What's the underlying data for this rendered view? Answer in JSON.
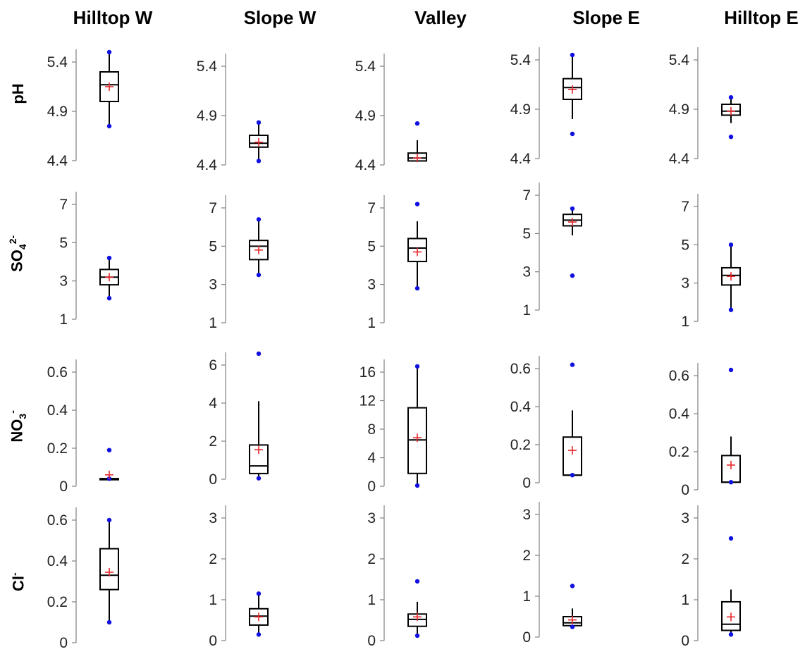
{
  "chart_data": {
    "type": "box",
    "title": "",
    "columns": [
      "Hilltop W",
      "Slope W",
      "Valley",
      "Slope E",
      "Hilltop E"
    ],
    "rows": [
      {
        "name": "pH",
        "label_main": "pH",
        "label_sub": "",
        "label_sup": ""
      },
      {
        "name": "SO4 2-",
        "label_main": "SO",
        "label_sub": "4",
        "label_sup": "2-"
      },
      {
        "name": "NO3 -",
        "label_main": "NO",
        "label_sub": "3",
        "label_sup": "-"
      },
      {
        "name": "Cl-",
        "label_main": "Cl",
        "label_sub": "",
        "label_sup": "-"
      }
    ],
    "legend_marks": {
      "mean_marker": "+",
      "outlier_marker": "dot"
    },
    "colors": {
      "box": "#000000",
      "mean": "#e8262a",
      "outlier": "#1010e0",
      "axis": "#808080"
    },
    "panels": [
      [
        {
          "ylim": [
            4.4,
            5.4
          ],
          "ticks": [
            4.4,
            4.9,
            5.4
          ],
          "tick_labels": [
            "4.4",
            "4.9",
            "5.4"
          ],
          "q1": 5.0,
          "median": 5.17,
          "q3": 5.3,
          "whisker_low": 4.75,
          "whisker_high": 5.5,
          "mean": 5.15,
          "outliers": [
            4.75,
            5.5
          ]
        },
        {
          "ylim": [
            4.4,
            5.4
          ],
          "ticks": [
            4.4,
            4.9,
            5.4
          ],
          "tick_labels": [
            "4.4",
            "4.9",
            "5.4"
          ],
          "q1": 4.58,
          "median": 4.62,
          "q3": 4.7,
          "whisker_low": 4.44,
          "whisker_high": 4.83,
          "mean": 4.63,
          "outliers": [
            4.44,
            4.83
          ]
        },
        {
          "ylim": [
            4.4,
            5.4
          ],
          "ticks": [
            4.4,
            4.9,
            5.4
          ],
          "tick_labels": [
            "4.4",
            "4.9",
            "5.4"
          ],
          "q1": 4.44,
          "median": 4.47,
          "q3": 4.52,
          "whisker_low": 4.44,
          "whisker_high": 4.65,
          "mean": 4.47,
          "outliers": [
            4.82
          ]
        },
        {
          "ylim": [
            4.4,
            5.4
          ],
          "ticks": [
            4.4,
            4.9,
            5.4
          ],
          "tick_labels": [
            "4.4",
            "4.9",
            "5.4"
          ],
          "q1": 5.0,
          "median": 5.12,
          "q3": 5.21,
          "whisker_low": 4.8,
          "whisker_high": 5.45,
          "mean": 5.1,
          "outliers": [
            4.65,
            5.45
          ]
        },
        {
          "ylim": [
            4.4,
            5.4
          ],
          "ticks": [
            4.4,
            4.9,
            5.4
          ],
          "tick_labels": [
            "4.4",
            "4.9",
            "5.4"
          ],
          "q1": 4.84,
          "median": 4.88,
          "q3": 4.95,
          "whisker_low": 4.76,
          "whisker_high": 5.02,
          "mean": 4.88,
          "outliers": [
            4.62,
            5.02
          ]
        }
      ],
      [
        {
          "ylim": [
            1,
            7
          ],
          "ticks": [
            1,
            3,
            5,
            7
          ],
          "tick_labels": [
            "1",
            "3",
            "5",
            "7"
          ],
          "q1": 2.8,
          "median": 3.2,
          "q3": 3.6,
          "whisker_low": 2.1,
          "whisker_high": 4.2,
          "mean": 3.2,
          "outliers": [
            2.1,
            4.2
          ]
        },
        {
          "ylim": [
            1,
            7
          ],
          "ticks": [
            1,
            3,
            5,
            7
          ],
          "tick_labels": [
            "1",
            "3",
            "5",
            "7"
          ],
          "q1": 4.3,
          "median": 5.0,
          "q3": 5.3,
          "whisker_low": 3.5,
          "whisker_high": 6.4,
          "mean": 4.8,
          "outliers": [
            3.5,
            6.4
          ]
        },
        {
          "ylim": [
            1,
            7
          ],
          "ticks": [
            1,
            3,
            5,
            7
          ],
          "tick_labels": [
            "1",
            "3",
            "5",
            "7"
          ],
          "q1": 4.2,
          "median": 4.9,
          "q3": 5.4,
          "whisker_low": 2.8,
          "whisker_high": 6.3,
          "mean": 4.7,
          "outliers": [
            2.8,
            7.2
          ]
        },
        {
          "ylim": [
            1,
            7
          ],
          "ticks": [
            1,
            3,
            5,
            7
          ],
          "tick_labels": [
            "1",
            "3",
            "5",
            "7"
          ],
          "q1": 5.4,
          "median": 5.7,
          "q3": 6.0,
          "whisker_low": 4.9,
          "whisker_high": 6.3,
          "mean": 5.6,
          "outliers": [
            2.8,
            6.3
          ]
        },
        {
          "ylim": [
            1,
            7
          ],
          "ticks": [
            1,
            3,
            5,
            7
          ],
          "tick_labels": [
            "1",
            "3",
            "5",
            "7"
          ],
          "q1": 2.9,
          "median": 3.4,
          "q3": 3.8,
          "whisker_low": 1.6,
          "whisker_high": 5.0,
          "mean": 3.35,
          "outliers": [
            1.6,
            5.0
          ]
        }
      ],
      [
        {
          "ylim": [
            0,
            0.6
          ],
          "ticks": [
            0,
            0.2,
            0.4,
            0.6
          ],
          "tick_labels": [
            "0",
            "0.2",
            "0.4",
            "0.6"
          ],
          "q1": 0.04,
          "median": 0.04,
          "q3": 0.04,
          "whisker_low": 0.04,
          "whisker_high": 0.04,
          "mean": 0.06,
          "outliers": [
            0.04,
            0.19
          ]
        },
        {
          "ylim": [
            0,
            6
          ],
          "ticks": [
            0,
            2,
            4,
            6
          ],
          "tick_labels": [
            "0",
            "2",
            "4",
            "6"
          ],
          "q1": 0.3,
          "median": 0.7,
          "q3": 1.8,
          "whisker_low": 0.05,
          "whisker_high": 4.1,
          "mean": 1.55,
          "outliers": [
            0.05,
            6.6
          ]
        },
        {
          "ylim": [
            0,
            16
          ],
          "ticks": [
            0,
            4,
            8,
            12,
            16
          ],
          "tick_labels": [
            "0",
            "4",
            "8",
            "12",
            "16"
          ],
          "q1": 1.8,
          "median": 6.5,
          "q3": 11.0,
          "whisker_low": 0.1,
          "whisker_high": 16.8,
          "mean": 6.8,
          "outliers": [
            0.1,
            16.8
          ]
        },
        {
          "ylim": [
            0,
            0.6
          ],
          "ticks": [
            0,
            0.2,
            0.4,
            0.6
          ],
          "tick_labels": [
            "0",
            "0.2",
            "0.4",
            "0.6"
          ],
          "q1": 0.04,
          "median": 0.04,
          "q3": 0.24,
          "whisker_low": 0.04,
          "whisker_high": 0.38,
          "mean": 0.17,
          "outliers": [
            0.04,
            0.62
          ]
        },
        {
          "ylim": [
            0,
            0.6
          ],
          "ticks": [
            0,
            0.2,
            0.4,
            0.6
          ],
          "tick_labels": [
            "0",
            "0.2",
            "0.4",
            "0.6"
          ],
          "q1": 0.04,
          "median": 0.04,
          "q3": 0.18,
          "whisker_low": 0.04,
          "whisker_high": 0.28,
          "mean": 0.13,
          "outliers": [
            0.04,
            0.63
          ]
        }
      ],
      [
        {
          "ylim": [
            0,
            0.6
          ],
          "ticks": [
            0,
            0.2,
            0.4,
            0.6
          ],
          "tick_labels": [
            "0",
            "0.2",
            "0.4",
            "0.6"
          ],
          "q1": 0.26,
          "median": 0.33,
          "q3": 0.46,
          "whisker_low": 0.1,
          "whisker_high": 0.6,
          "mean": 0.345,
          "outliers": [
            0.1,
            0.6
          ]
        },
        {
          "ylim": [
            0,
            3
          ],
          "ticks": [
            0,
            1,
            2,
            3
          ],
          "tick_labels": [
            "0",
            "1",
            "2",
            "3"
          ],
          "q1": 0.38,
          "median": 0.6,
          "q3": 0.78,
          "whisker_low": 0.15,
          "whisker_high": 1.15,
          "mean": 0.58,
          "outliers": [
            0.15,
            1.15
          ]
        },
        {
          "ylim": [
            0,
            3
          ],
          "ticks": [
            0,
            1,
            2,
            3
          ],
          "tick_labels": [
            "0",
            "1",
            "2",
            "3"
          ],
          "q1": 0.35,
          "median": 0.52,
          "q3": 0.65,
          "whisker_low": 0.12,
          "whisker_high": 0.95,
          "mean": 0.58,
          "outliers": [
            0.12,
            1.45
          ]
        },
        {
          "ylim": [
            0,
            3
          ],
          "ticks": [
            0,
            1,
            2,
            3
          ],
          "tick_labels": [
            "0",
            "1",
            "2",
            "3"
          ],
          "q1": 0.28,
          "median": 0.35,
          "q3": 0.5,
          "whisker_low": 0.2,
          "whisker_high": 0.7,
          "mean": 0.42,
          "outliers": [
            0.25,
            1.25
          ]
        },
        {
          "ylim": [
            0,
            3
          ],
          "ticks": [
            0,
            1,
            2,
            3
          ],
          "tick_labels": [
            "0",
            "1",
            "2",
            "3"
          ],
          "q1": 0.25,
          "median": 0.4,
          "q3": 0.95,
          "whisker_low": 0.15,
          "whisker_high": 1.25,
          "mean": 0.58,
          "outliers": [
            0.15,
            2.5
          ]
        }
      ]
    ]
  }
}
